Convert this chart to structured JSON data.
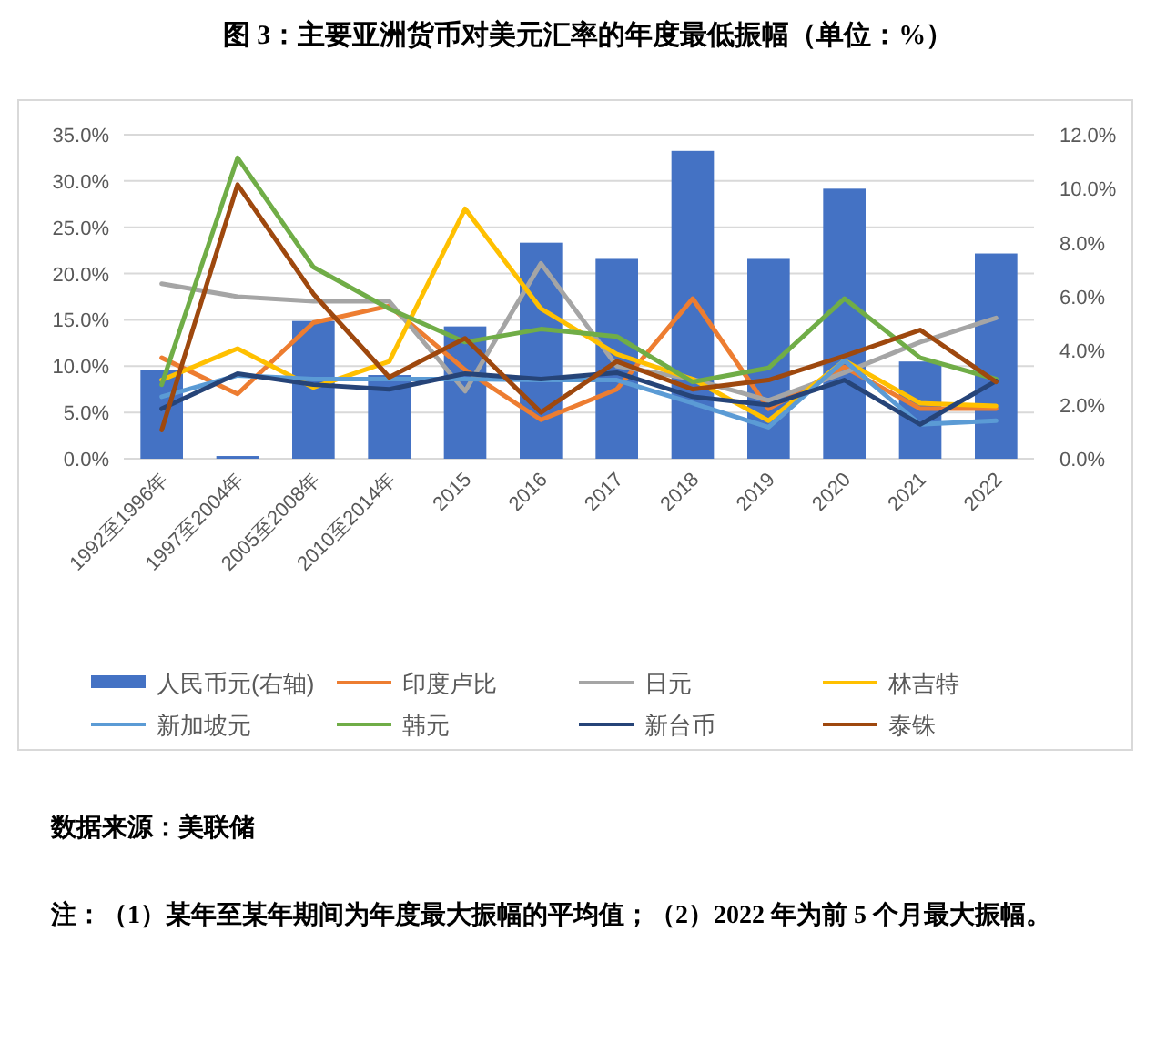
{
  "chart_data": {
    "type": "line",
    "title": "图 3：主要亚洲货币对美元汇率的年度最低振幅（单位：%）",
    "categories": [
      "1992至1996年",
      "1997至2004年",
      "2005至2008年",
      "2010至2014年",
      "2015",
      "2016",
      "2017",
      "2018",
      "2019",
      "2020",
      "2021",
      "2022"
    ],
    "series": [
      {
        "name": "人民币元(右轴)",
        "type": "bar",
        "axis": "y2",
        "color": "#4472c4",
        "values": [
          3.3,
          0.1,
          5.1,
          3.1,
          4.9,
          8.0,
          7.4,
          11.4,
          7.4,
          10.0,
          3.6,
          7.6
        ]
      },
      {
        "name": "印度卢比",
        "color": "#ed7d31",
        "values": [
          10.9,
          7.0,
          14.7,
          16.5,
          9.6,
          4.2,
          7.5,
          17.3,
          5.4,
          9.9,
          5.4,
          5.4
        ]
      },
      {
        "name": "日元",
        "color": "#a5a5a5",
        "values": [
          18.9,
          17.5,
          17.0,
          17.0,
          7.3,
          21.1,
          10.0,
          8.6,
          6.3,
          9.3,
          12.6,
          15.2
        ]
      },
      {
        "name": "林吉特",
        "color": "#ffc000",
        "values": [
          8.5,
          11.9,
          7.7,
          10.5,
          27.0,
          16.2,
          11.3,
          8.6,
          4.1,
          10.6,
          6.0,
          5.7
        ]
      },
      {
        "name": "新加坡元",
        "color": "#5b9bd5",
        "values": [
          6.7,
          9.0,
          8.6,
          8.6,
          8.6,
          8.5,
          8.5,
          6.0,
          3.4,
          10.6,
          3.7,
          4.1
        ]
      },
      {
        "name": "韩元",
        "color": "#70ad47",
        "values": [
          8.0,
          32.5,
          20.7,
          16.2,
          12.6,
          14.0,
          13.2,
          8.3,
          9.8,
          17.3,
          10.9,
          8.6
        ]
      },
      {
        "name": "新台币",
        "color": "#264478",
        "values": [
          5.4,
          9.2,
          8.0,
          7.5,
          9.2,
          8.6,
          9.3,
          6.7,
          5.8,
          8.5,
          3.7,
          8.4
        ]
      },
      {
        "name": "泰铢",
        "color": "#9e480e",
        "values": [
          3.1,
          29.6,
          17.8,
          8.8,
          13.0,
          5.0,
          10.5,
          7.5,
          8.5,
          11.1,
          13.9,
          8.3
        ]
      }
    ],
    "ylim": [
      0,
      35
    ],
    "yticks": [
      {
        "value": 0,
        "label": "0.0%"
      },
      {
        "value": 5,
        "label": "5.0%"
      },
      {
        "value": 10,
        "label": "10.0%"
      },
      {
        "value": 15,
        "label": "15.0%"
      },
      {
        "value": 20,
        "label": "20.0%"
      },
      {
        "value": 25,
        "label": "25.0%"
      },
      {
        "value": 30,
        "label": "30.0%"
      },
      {
        "value": 35,
        "label": "35.0%"
      }
    ],
    "y2lim": [
      0,
      12
    ],
    "y2ticks": [
      {
        "value": 0,
        "label": "0.0%"
      },
      {
        "value": 2,
        "label": "2.0%"
      },
      {
        "value": 4,
        "label": "4.0%"
      },
      {
        "value": 6,
        "label": "6.0%"
      },
      {
        "value": 8,
        "label": "8.0%"
      },
      {
        "value": 10,
        "label": "10.0%"
      },
      {
        "value": 12,
        "label": "12.0%"
      }
    ],
    "grid": "y",
    "legend": "bottom",
    "annotations": [
      "数据来源：美联储",
      "注：（1）某年至某年期间为年度最大振幅的平均值；（2）2022 年为前 5 个月最大振幅。"
    ]
  }
}
